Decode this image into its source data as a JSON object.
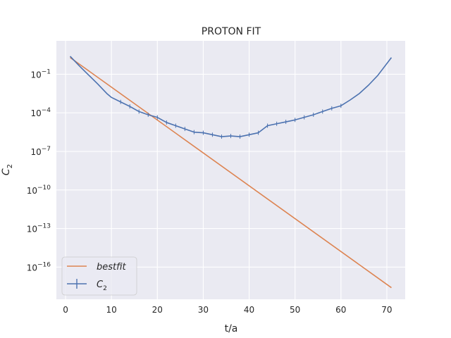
{
  "chart_data": {
    "type": "line",
    "title": "PROTON FIT",
    "xlabel": "t/a",
    "ylabel_base": "C",
    "ylabel_sub": "2",
    "xlim": [
      -2,
      74
    ],
    "ylim_log10": [
      -18.5,
      1.6
    ],
    "yscale": "log",
    "grid": true,
    "legend_location": "lower-left",
    "x_ticks": [
      0,
      10,
      20,
      30,
      40,
      50,
      60,
      70
    ],
    "x_tick_labels": [
      "0",
      "10",
      "20",
      "30",
      "40",
      "50",
      "60",
      "70"
    ],
    "y_ticks_exp": [
      -1,
      -4,
      -7,
      -10,
      -13,
      -16
    ],
    "y_tick_base": "10",
    "y_tick_exps": [
      "−1",
      "−4",
      "−7",
      "−10",
      "−13",
      "−16"
    ],
    "series": [
      {
        "name": "bestfit",
        "legend_label": "bestfit",
        "legend_italic": true,
        "color": "#dd8452",
        "x": [
          1,
          71
        ],
        "log10_y": [
          0.3,
          -17.6
        ]
      },
      {
        "name": "C2",
        "legend_label_base": "C",
        "legend_label_sub": "2",
        "color": "#4c72b0",
        "errorbars": true,
        "x": [
          1,
          3,
          5,
          7,
          9,
          10,
          12,
          14,
          16,
          18,
          20,
          22,
          24,
          26,
          28,
          30,
          32,
          34,
          36,
          38,
          40,
          42,
          44,
          46,
          48,
          50,
          52,
          54,
          56,
          58,
          60,
          62,
          64,
          66,
          68,
          71
        ],
        "log10_y": [
          0.4,
          -0.35,
          -1.05,
          -1.75,
          -2.5,
          -2.8,
          -3.15,
          -3.5,
          -3.9,
          -4.15,
          -4.35,
          -4.75,
          -5.0,
          -5.25,
          -5.5,
          -5.55,
          -5.7,
          -5.85,
          -5.8,
          -5.85,
          -5.7,
          -5.55,
          -5.0,
          -4.85,
          -4.7,
          -4.55,
          -4.35,
          -4.15,
          -3.9,
          -3.65,
          -3.45,
          -3.0,
          -2.5,
          -1.85,
          -1.1,
          0.3
        ]
      }
    ]
  }
}
